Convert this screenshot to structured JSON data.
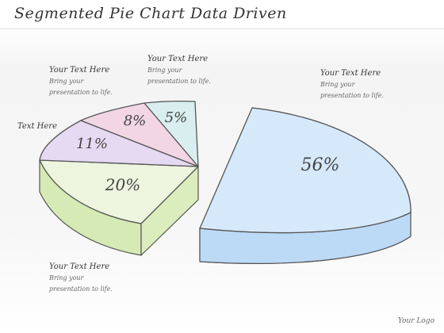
{
  "slide": {
    "title": "Segmented Pie Chart Data Driven",
    "logo": "Your Logo"
  },
  "callouts": [
    {
      "id": "tl",
      "heading": "Your Text Here",
      "body": [
        "Bring your",
        "presentation to life."
      ]
    },
    {
      "id": "tc",
      "heading": "Your Text Here",
      "body": [
        "Bring your",
        "presentation to life."
      ]
    },
    {
      "id": "tr",
      "heading": "Your Text Here",
      "body": [
        "Bring your",
        "presentation to life."
      ]
    },
    {
      "id": "bl",
      "heading": "Your Text Here",
      "body": [
        "Bring your",
        "presentation to life."
      ]
    }
  ],
  "side_label": "Text Here",
  "chart_data": {
    "type": "pie",
    "title": "Segmented Pie Chart Data Driven",
    "style": "3d-exploded",
    "slices": [
      {
        "label": "56%",
        "value": 56,
        "color": "#d6e9fb",
        "side_color": "#b9d8f5",
        "exploded": true
      },
      {
        "label": "20%",
        "value": 20,
        "color": "#edf5df",
        "side_color": "#cfe6a8",
        "exploded": false
      },
      {
        "label": "11%",
        "value": 11,
        "color": "#e6d9f2",
        "side_color": "#cdb8e3",
        "exploded": false
      },
      {
        "label": "8%",
        "value": 8,
        "color": "#f2d6e3",
        "side_color": "#e0b4c8",
        "exploded": false
      },
      {
        "label": "5%",
        "value": 5,
        "color": "#d9eeee",
        "side_color": "#b9dcdc",
        "exploded": false
      }
    ]
  }
}
